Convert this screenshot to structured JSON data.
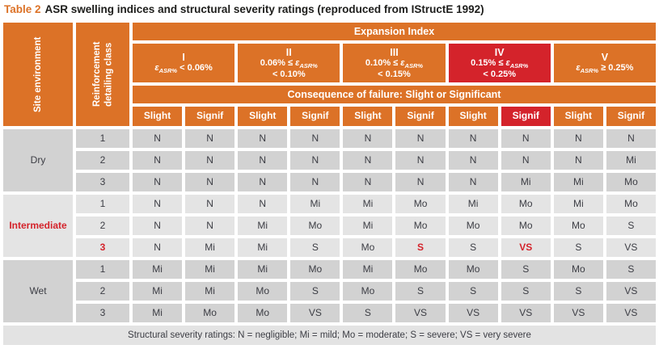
{
  "title": {
    "label": "Table 2",
    "text": "ASR swelling indices and structural severity ratings (reproduced from IStructE 1992)"
  },
  "colors": {
    "orange": "#dc7227",
    "red": "#d4232b",
    "cell_gray_dark": "#d2d2d2",
    "cell_gray_light": "#e4e4e4",
    "footer_gray": "#e3e3e3",
    "cell_text": "#3c3d44",
    "title_text": "#1d1d1b"
  },
  "header": {
    "site_environment": "Site environment",
    "reinforcement_detailing_class": "Reinforcement detailing class",
    "expansion_index": "Expansion Index",
    "consequence_of_failure": "Consequence of failure: Slight or Significant",
    "epsilon": "ε",
    "epsilon_sub": "ASR%",
    "classes": [
      {
        "numeral": "I",
        "pre": "",
        "post": " < 0.06%",
        "line2": "",
        "highlight": false
      },
      {
        "numeral": "II",
        "pre": "0.06% ≤ ",
        "post": "",
        "line2": "< 0.10%",
        "highlight": false
      },
      {
        "numeral": "III",
        "pre": "0.10% ≤ ",
        "post": "",
        "line2": "< 0.15%",
        "highlight": false
      },
      {
        "numeral": "IV",
        "pre": "0.15% ≤ ",
        "post": "",
        "line2": "< 0.25%",
        "highlight": true
      },
      {
        "numeral": "V",
        "pre": "",
        "post": " ≥ 0.25%",
        "line2": "",
        "highlight": false
      }
    ],
    "subcolumns": [
      {
        "label": "Slight",
        "highlight": false
      },
      {
        "label": "Signif",
        "highlight": false
      },
      {
        "label": "Slight",
        "highlight": false
      },
      {
        "label": "Signif",
        "highlight": false
      },
      {
        "label": "Slight",
        "highlight": false
      },
      {
        "label": "Signif",
        "highlight": false
      },
      {
        "label": "Slight",
        "highlight": false
      },
      {
        "label": "Signif",
        "highlight": true
      },
      {
        "label": "Slight",
        "highlight": false
      },
      {
        "label": "Signif",
        "highlight": false
      }
    ]
  },
  "body": {
    "groups": [
      {
        "label": "Dry",
        "label_red": false,
        "shade": "dark",
        "rows": [
          {
            "class": "1",
            "class_red": false,
            "red": [],
            "cells": [
              "N",
              "N",
              "N",
              "N",
              "N",
              "N",
              "N",
              "N",
              "N",
              "N"
            ]
          },
          {
            "class": "2",
            "class_red": false,
            "red": [],
            "cells": [
              "N",
              "N",
              "N",
              "N",
              "N",
              "N",
              "N",
              "N",
              "N",
              "Mi"
            ]
          },
          {
            "class": "3",
            "class_red": false,
            "red": [],
            "cells": [
              "N",
              "N",
              "N",
              "N",
              "N",
              "N",
              "N",
              "Mi",
              "Mi",
              "Mo"
            ]
          }
        ]
      },
      {
        "label": "Intermediate",
        "label_red": true,
        "shade": "light",
        "rows": [
          {
            "class": "1",
            "class_red": false,
            "red": [],
            "cells": [
              "N",
              "N",
              "N",
              "Mi",
              "Mi",
              "Mo",
              "Mi",
              "Mo",
              "Mi",
              "Mo"
            ]
          },
          {
            "class": "2",
            "class_red": false,
            "red": [],
            "cells": [
              "N",
              "N",
              "Mi",
              "Mo",
              "Mi",
              "Mo",
              "Mo",
              "Mo",
              "Mo",
              "S"
            ]
          },
          {
            "class": "3",
            "class_red": true,
            "red": [
              5,
              7
            ],
            "cells": [
              "N",
              "Mi",
              "Mi",
              "S",
              "Mo",
              "S",
              "S",
              "VS",
              "S",
              "VS"
            ]
          }
        ]
      },
      {
        "label": "Wet",
        "label_red": false,
        "shade": "dark",
        "rows": [
          {
            "class": "1",
            "class_red": false,
            "red": [],
            "cells": [
              "Mi",
              "Mi",
              "Mi",
              "Mo",
              "Mi",
              "Mo",
              "Mo",
              "S",
              "Mo",
              "S"
            ]
          },
          {
            "class": "2",
            "class_red": false,
            "red": [],
            "cells": [
              "Mi",
              "Mi",
              "Mo",
              "S",
              "Mo",
              "S",
              "S",
              "S",
              "S",
              "VS"
            ]
          },
          {
            "class": "3",
            "class_red": false,
            "red": [],
            "cells": [
              "Mi",
              "Mo",
              "Mo",
              "VS",
              "S",
              "VS",
              "VS",
              "VS",
              "VS",
              "VS"
            ]
          }
        ]
      }
    ]
  },
  "footer": {
    "text": "Structural severity ratings: N = negligible; Mi = mild; Mo = moderate; S = severe; VS = very severe"
  }
}
